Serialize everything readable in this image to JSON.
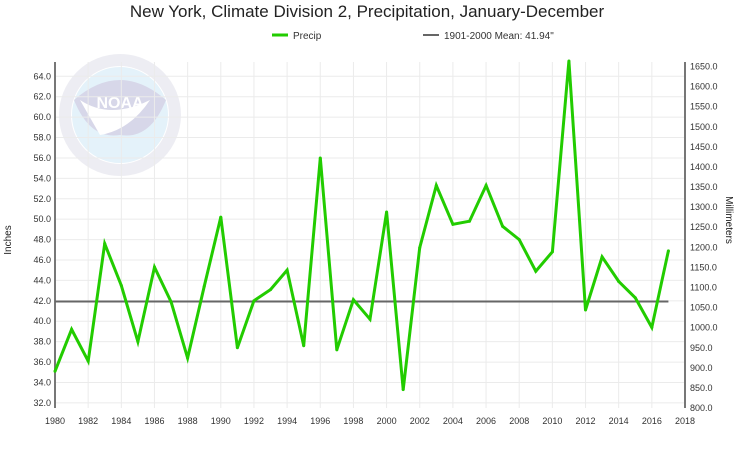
{
  "chart_data": {
    "type": "line",
    "title": "New York, Climate Division 2, Precipitation, January-December",
    "ylabel": "Inches",
    "ylabel_right": "Millimeters",
    "xlim": [
      1980,
      2018
    ],
    "ylim": [
      31.5,
      65.4
    ],
    "x_ticks": [
      1980,
      1982,
      1984,
      1986,
      1988,
      1990,
      1992,
      1994,
      1996,
      1998,
      2000,
      2002,
      2004,
      2006,
      2008,
      2010,
      2012,
      2014,
      2016,
      2018
    ],
    "y_ticks": [
      "32.0",
      "34.0",
      "36.0",
      "38.0",
      "40.0",
      "42.0",
      "44.0",
      "46.0",
      "48.0",
      "50.0",
      "52.0",
      "54.0",
      "56.0",
      "58.0",
      "60.0",
      "62.0",
      "64.0"
    ],
    "y_right_ticks": [
      "800.0",
      "850.0",
      "900.0",
      "950.0",
      "1000.0",
      "1050.0",
      "1100.0",
      "1150.0",
      "1200.0",
      "1250.0",
      "1300.0",
      "1350.0",
      "1400.0",
      "1450.0",
      "1500.0",
      "1550.0",
      "1600.0",
      "1650.0"
    ],
    "grid": true,
    "legend_position": "top-center",
    "series": [
      {
        "name": "Precip",
        "color": "#22cc00",
        "x": [
          1980,
          1981,
          1982,
          1983,
          1984,
          1985,
          1986,
          1987,
          1988,
          1989,
          1990,
          1991,
          1992,
          1993,
          1994,
          1995,
          1996,
          1997,
          1998,
          1999,
          2000,
          2001,
          2002,
          2003,
          2004,
          2005,
          2006,
          2007,
          2008,
          2009,
          2010,
          2011,
          2012,
          2013,
          2014,
          2015,
          2016,
          2017
        ],
        "values": [
          35.1,
          39.2,
          36.1,
          47.6,
          43.5,
          38.0,
          45.3,
          41.9,
          36.4,
          43.4,
          50.2,
          37.4,
          42.0,
          43.1,
          45.0,
          37.6,
          56.0,
          37.2,
          42.1,
          40.2,
          50.7,
          33.3,
          47.2,
          53.3,
          49.5,
          49.8,
          53.3,
          49.3,
          48.0,
          44.9,
          46.8,
          65.5,
          41.1,
          46.3,
          43.9,
          42.3,
          39.4,
          46.9
        ]
      }
    ],
    "reference_line": {
      "name": "1901-2000 Mean: 41.94\"",
      "value": 41.94,
      "color": "#666666"
    }
  },
  "watermark": {
    "text": "NOAA",
    "ring_text": "NATIONAL OCEANIC AND ATMOSPHERIC ADMINISTRATION · U.S. DEPARTMENT OF COMMERCE"
  }
}
